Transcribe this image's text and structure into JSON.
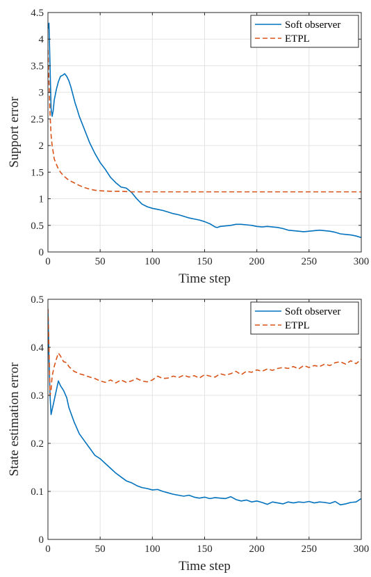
{
  "chart_data": [
    {
      "type": "line",
      "xlabel": "Time step",
      "ylabel": "Support error",
      "xlim": [
        0,
        300
      ],
      "ylim": [
        0,
        4.5
      ],
      "xticks": [
        "0",
        "50",
        "100",
        "150",
        "200",
        "250",
        "300"
      ],
      "yticks": [
        "0",
        "0.5",
        "1",
        "1.5",
        "2",
        "2.5",
        "3",
        "3.5",
        "4",
        "4.5"
      ],
      "grid": true,
      "legend_position": "top-right",
      "series": [
        {
          "name": "Soft observer",
          "color": "#0072BD",
          "style": "solid",
          "x": [
            0,
            1,
            2,
            3,
            4,
            5,
            6,
            8,
            10,
            12,
            14,
            16,
            18,
            20,
            22,
            24,
            26,
            28,
            30,
            35,
            40,
            45,
            50,
            55,
            60,
            65,
            70,
            75,
            80,
            85,
            90,
            95,
            100,
            105,
            110,
            115,
            120,
            125,
            130,
            135,
            140,
            145,
            150,
            155,
            160,
            162,
            165,
            170,
            175,
            180,
            185,
            190,
            195,
            200,
            205,
            210,
            215,
            220,
            225,
            230,
            235,
            240,
            245,
            250,
            255,
            260,
            265,
            270,
            275,
            280,
            285,
            290,
            295,
            300
          ],
          "y": [
            4.2,
            4.3,
            3.5,
            2.7,
            2.55,
            2.65,
            2.85,
            3.05,
            3.2,
            3.3,
            3.32,
            3.35,
            3.3,
            3.22,
            3.1,
            2.95,
            2.8,
            2.68,
            2.55,
            2.3,
            2.05,
            1.85,
            1.68,
            1.55,
            1.4,
            1.3,
            1.22,
            1.2,
            1.12,
            1.0,
            0.9,
            0.85,
            0.82,
            0.8,
            0.78,
            0.75,
            0.72,
            0.7,
            0.67,
            0.64,
            0.62,
            0.6,
            0.57,
            0.53,
            0.47,
            0.46,
            0.48,
            0.49,
            0.5,
            0.52,
            0.52,
            0.51,
            0.5,
            0.48,
            0.47,
            0.48,
            0.47,
            0.46,
            0.44,
            0.41,
            0.4,
            0.39,
            0.38,
            0.39,
            0.4,
            0.41,
            0.4,
            0.39,
            0.37,
            0.34,
            0.33,
            0.32,
            0.3,
            0.27
          ]
        },
        {
          "name": "ETPL",
          "color": "#D95319",
          "style": "dashed",
          "x": [
            0,
            1,
            2,
            3,
            4,
            5,
            6,
            8,
            10,
            12,
            15,
            18,
            20,
            25,
            30,
            35,
            40,
            45,
            50,
            60,
            70,
            80,
            100,
            150,
            200,
            250,
            300
          ],
          "y": [
            3.8,
            3.2,
            2.6,
            2.2,
            2.0,
            1.88,
            1.75,
            1.65,
            1.56,
            1.5,
            1.43,
            1.38,
            1.35,
            1.3,
            1.25,
            1.21,
            1.18,
            1.16,
            1.15,
            1.14,
            1.14,
            1.13,
            1.13,
            1.13,
            1.13,
            1.13,
            1.13
          ]
        }
      ]
    },
    {
      "type": "line",
      "xlabel": "Time step",
      "ylabel": "State estimation error",
      "xlim": [
        0,
        300
      ],
      "ylim": [
        0,
        0.5
      ],
      "xticks": [
        "0",
        "50",
        "100",
        "150",
        "200",
        "250",
        "300"
      ],
      "yticks": [
        "0",
        "0.1",
        "0.2",
        "0.3",
        "0.4",
        "0.5"
      ],
      "grid": true,
      "legend_position": "top-right",
      "series": [
        {
          "name": "Soft observer",
          "color": "#0072BD",
          "style": "solid",
          "x": [
            0,
            1,
            2,
            3,
            4,
            5,
            6,
            8,
            10,
            12,
            15,
            18,
            20,
            25,
            30,
            35,
            40,
            45,
            50,
            55,
            60,
            65,
            70,
            75,
            80,
            85,
            90,
            95,
            100,
            105,
            110,
            115,
            120,
            125,
            130,
            135,
            140,
            145,
            150,
            155,
            160,
            165,
            170,
            175,
            180,
            185,
            190,
            195,
            200,
            205,
            210,
            215,
            220,
            225,
            230,
            235,
            240,
            245,
            250,
            255,
            260,
            265,
            270,
            275,
            280,
            285,
            290,
            295,
            300
          ],
          "y": [
            0.48,
            0.38,
            0.3,
            0.26,
            0.27,
            0.28,
            0.29,
            0.31,
            0.33,
            0.32,
            0.31,
            0.295,
            0.275,
            0.245,
            0.22,
            0.205,
            0.19,
            0.175,
            0.168,
            0.158,
            0.148,
            0.138,
            0.13,
            0.122,
            0.118,
            0.112,
            0.108,
            0.106,
            0.103,
            0.104,
            0.1,
            0.097,
            0.094,
            0.092,
            0.09,
            0.092,
            0.088,
            0.086,
            0.088,
            0.085,
            0.087,
            0.086,
            0.085,
            0.089,
            0.083,
            0.08,
            0.082,
            0.078,
            0.08,
            0.077,
            0.073,
            0.078,
            0.076,
            0.074,
            0.078,
            0.076,
            0.078,
            0.077,
            0.079,
            0.076,
            0.078,
            0.077,
            0.075,
            0.079,
            0.072,
            0.074,
            0.077,
            0.078,
            0.085
          ]
        },
        {
          "name": "ETPL",
          "color": "#D95319",
          "style": "dashed",
          "x": [
            0,
            1,
            2,
            3,
            4,
            5,
            6,
            8,
            10,
            12,
            15,
            18,
            20,
            25,
            30,
            35,
            40,
            45,
            50,
            55,
            60,
            65,
            70,
            75,
            80,
            85,
            90,
            95,
            100,
            105,
            110,
            115,
            120,
            125,
            130,
            135,
            140,
            145,
            150,
            155,
            160,
            165,
            170,
            175,
            180,
            185,
            190,
            195,
            200,
            205,
            210,
            215,
            220,
            225,
            230,
            235,
            240,
            245,
            250,
            255,
            260,
            265,
            270,
            275,
            280,
            285,
            290,
            295,
            300
          ],
          "y": [
            0.48,
            0.4,
            0.3,
            0.31,
            0.34,
            0.35,
            0.36,
            0.375,
            0.388,
            0.382,
            0.37,
            0.368,
            0.36,
            0.35,
            0.345,
            0.342,
            0.338,
            0.335,
            0.33,
            0.327,
            0.332,
            0.326,
            0.332,
            0.327,
            0.33,
            0.335,
            0.33,
            0.328,
            0.332,
            0.34,
            0.335,
            0.336,
            0.34,
            0.337,
            0.342,
            0.338,
            0.341,
            0.336,
            0.343,
            0.34,
            0.338,
            0.345,
            0.342,
            0.345,
            0.35,
            0.343,
            0.35,
            0.348,
            0.353,
            0.35,
            0.355,
            0.352,
            0.356,
            0.358,
            0.356,
            0.36,
            0.355,
            0.362,
            0.358,
            0.362,
            0.36,
            0.365,
            0.362,
            0.368,
            0.37,
            0.365,
            0.372,
            0.366,
            0.375
          ]
        }
      ]
    }
  ]
}
